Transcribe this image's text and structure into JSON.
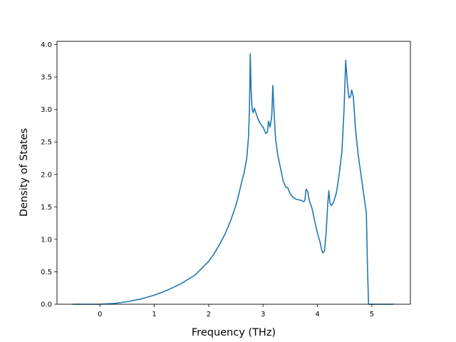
{
  "chart_data": {
    "type": "line",
    "title": "",
    "xlabel": "Frequency (THz)",
    "ylabel": "Density of States",
    "xlim": [
      -0.79,
      5.71
    ],
    "ylim": [
      0,
      4.05
    ],
    "xticks": [
      "0",
      "1",
      "2",
      "3",
      "4",
      "5"
    ],
    "yticks": [
      "0.0",
      "0.5",
      "1.0",
      "1.5",
      "2.0",
      "2.5",
      "3.0",
      "3.5",
      "4.0"
    ],
    "grid": false,
    "legend": "none",
    "line_color": "#1f77b4",
    "series": [
      {
        "points": [
          [
            -0.5,
            0.0
          ],
          [
            0.0,
            0.0
          ],
          [
            0.25,
            0.01
          ],
          [
            0.5,
            0.04
          ],
          [
            0.75,
            0.08
          ],
          [
            1.0,
            0.14
          ],
          [
            1.25,
            0.22
          ],
          [
            1.5,
            0.32
          ],
          [
            1.75,
            0.45
          ],
          [
            2.0,
            0.66
          ],
          [
            2.1,
            0.78
          ],
          [
            2.2,
            0.92
          ],
          [
            2.3,
            1.08
          ],
          [
            2.4,
            1.28
          ],
          [
            2.5,
            1.52
          ],
          [
            2.55,
            1.68
          ],
          [
            2.6,
            1.86
          ],
          [
            2.65,
            2.02
          ],
          [
            2.7,
            2.25
          ],
          [
            2.73,
            2.55
          ],
          [
            2.75,
            3.0
          ],
          [
            2.765,
            3.86
          ],
          [
            2.78,
            3.3
          ],
          [
            2.8,
            3.0
          ],
          [
            2.82,
            2.95
          ],
          [
            2.84,
            3.02
          ],
          [
            2.9,
            2.87
          ],
          [
            2.95,
            2.78
          ],
          [
            3.0,
            2.73
          ],
          [
            3.05,
            2.63
          ],
          [
            3.08,
            2.65
          ],
          [
            3.1,
            2.82
          ],
          [
            3.13,
            2.73
          ],
          [
            3.16,
            2.9
          ],
          [
            3.18,
            3.37
          ],
          [
            3.2,
            3.0
          ],
          [
            3.23,
            2.55
          ],
          [
            3.27,
            2.3
          ],
          [
            3.32,
            2.1
          ],
          [
            3.37,
            1.9
          ],
          [
            3.42,
            1.8
          ],
          [
            3.45,
            1.8
          ],
          [
            3.5,
            1.7
          ],
          [
            3.55,
            1.65
          ],
          [
            3.6,
            1.62
          ],
          [
            3.7,
            1.6
          ],
          [
            3.75,
            1.58
          ],
          [
            3.77,
            1.6
          ],
          [
            3.79,
            1.77
          ],
          [
            3.82,
            1.74
          ],
          [
            3.85,
            1.6
          ],
          [
            3.9,
            1.48
          ],
          [
            3.95,
            1.28
          ],
          [
            4.0,
            1.1
          ],
          [
            4.05,
            0.95
          ],
          [
            4.08,
            0.83
          ],
          [
            4.1,
            0.79
          ],
          [
            4.13,
            0.82
          ],
          [
            4.16,
            1.1
          ],
          [
            4.19,
            1.55
          ],
          [
            4.21,
            1.75
          ],
          [
            4.23,
            1.55
          ],
          [
            4.26,
            1.52
          ],
          [
            4.3,
            1.58
          ],
          [
            4.35,
            1.72
          ],
          [
            4.4,
            2.0
          ],
          [
            4.45,
            2.35
          ],
          [
            4.49,
            3.0
          ],
          [
            4.52,
            3.76
          ],
          [
            4.55,
            3.4
          ],
          [
            4.58,
            3.18
          ],
          [
            4.61,
            3.2
          ],
          [
            4.63,
            3.3
          ],
          [
            4.66,
            3.2
          ],
          [
            4.7,
            2.7
          ],
          [
            4.75,
            2.3
          ],
          [
            4.8,
            2.0
          ],
          [
            4.85,
            1.7
          ],
          [
            4.9,
            1.4
          ],
          [
            4.92,
            0.6
          ],
          [
            4.94,
            0.0
          ],
          [
            5.0,
            0.0
          ],
          [
            5.4,
            0.0
          ]
        ]
      }
    ]
  }
}
